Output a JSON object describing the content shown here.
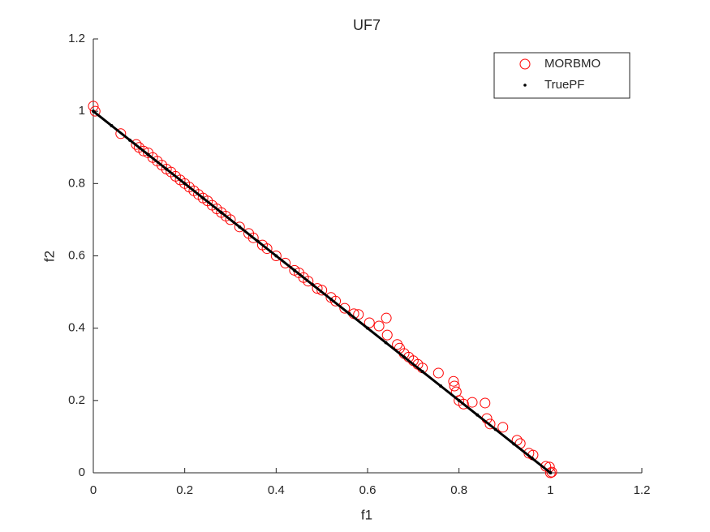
{
  "chart_data": {
    "type": "scatter",
    "title": "UF7",
    "xlabel": "f1",
    "ylabel": "f2",
    "xlim": [
      0,
      1.2
    ],
    "xticks": [
      0,
      0.2,
      0.4,
      0.6,
      0.8,
      1,
      1.2
    ],
    "ylim": [
      0,
      1.2
    ],
    "yticks": [
      0,
      0.2,
      0.4,
      0.6,
      0.8,
      1,
      1.2
    ],
    "grid": false,
    "legend": "northeast",
    "series": [
      {
        "name": "MORBMO",
        "color": "#ff0000",
        "marker": "o",
        "x": [
          0,
          0.004,
          0.06,
          0.094,
          0.1,
          0.11,
          0.12,
          0.13,
          0.14,
          0.15,
          0.16,
          0.17,
          0.18,
          0.19,
          0.2,
          0.21,
          0.22,
          0.23,
          0.24,
          0.25,
          0.26,
          0.27,
          0.28,
          0.29,
          0.3,
          0.32,
          0.34,
          0.35,
          0.37,
          0.38,
          0.4,
          0.42,
          0.44,
          0.45,
          0.46,
          0.47,
          0.49,
          0.5,
          0.52,
          0.53,
          0.55,
          0.57,
          0.58,
          0.604,
          0.625,
          0.641,
          0.643,
          0.665,
          0.67,
          0.68,
          0.69,
          0.7,
          0.71,
          0.72,
          0.755,
          0.788,
          0.79,
          0.794,
          0.8,
          0.81,
          0.829,
          0.857,
          0.861,
          0.868,
          0.896,
          0.927,
          0.934,
          0.953,
          0.962,
          0.99,
          0.998,
          1.003,
          1
        ],
        "values": [
          1.014,
          1,
          0.938,
          0.908,
          0.9,
          0.89,
          0.885,
          0.872,
          0.862,
          0.851,
          0.84,
          0.832,
          0.82,
          0.81,
          0.8,
          0.79,
          0.78,
          0.77,
          0.76,
          0.752,
          0.74,
          0.73,
          0.72,
          0.71,
          0.7,
          0.68,
          0.662,
          0.65,
          0.63,
          0.62,
          0.6,
          0.58,
          0.56,
          0.553,
          0.54,
          0.53,
          0.51,
          0.505,
          0.485,
          0.475,
          0.455,
          0.44,
          0.438,
          0.415,
          0.406,
          0.428,
          0.381,
          0.355,
          0.345,
          0.33,
          0.32,
          0.31,
          0.3,
          0.29,
          0.276,
          0.253,
          0.24,
          0.224,
          0.2,
          0.19,
          0.195,
          0.193,
          0.15,
          0.135,
          0.126,
          0.09,
          0.081,
          0.054,
          0.049,
          0.018,
          0.016,
          0.002,
          0
        ]
      },
      {
        "name": "TruePF",
        "color": "#000000",
        "marker": ".",
        "x": [
          0,
          0.04,
          0.08,
          0.12,
          0.16,
          0.2,
          0.24,
          0.28,
          0.32,
          0.36,
          0.4,
          0.44,
          0.48,
          0.52,
          0.56,
          0.6,
          0.64,
          0.68,
          0.72,
          0.76,
          0.8,
          0.84,
          0.88,
          0.92,
          0.96,
          1
        ],
        "values": [
          1,
          0.96,
          0.92,
          0.88,
          0.84,
          0.8,
          0.76,
          0.72,
          0.68,
          0.64,
          0.6,
          0.56,
          0.52,
          0.48,
          0.44,
          0.4,
          0.36,
          0.32,
          0.28,
          0.24,
          0.2,
          0.16,
          0.12,
          0.08,
          0.04,
          0
        ]
      }
    ]
  }
}
